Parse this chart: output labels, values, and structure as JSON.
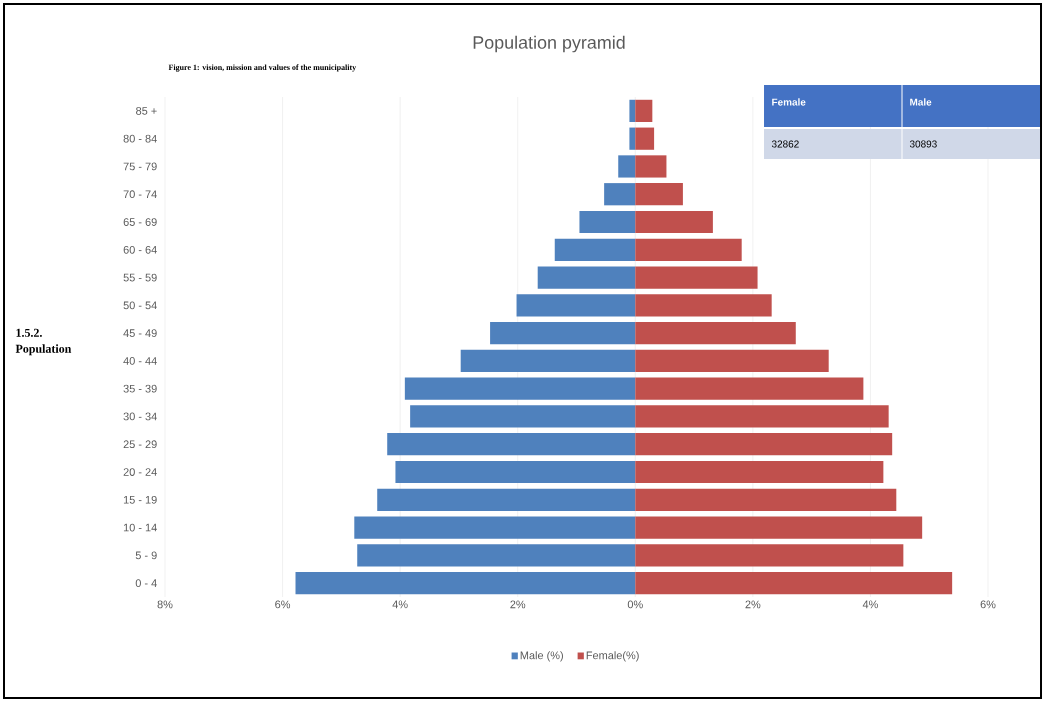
{
  "chart_data": {
    "type": "bar",
    "orientation": "horizontal",
    "title": "Population pyramid",
    "categories": [
      "85 +",
      "80 - 84",
      "75 - 79",
      "70 - 74",
      "65 - 69",
      "60 - 64",
      "55 - 59",
      "50 - 54",
      "45 - 49",
      "40 - 44",
      "35 - 39",
      "30 - 34",
      "25 - 29",
      "20 - 24",
      "15 - 19",
      "10 - 14",
      "5 - 9",
      "0 - 4"
    ],
    "series": [
      {
        "name": "Male (%)",
        "color": "#4f81bd",
        "values": [
          -0.1,
          -0.1,
          -0.29,
          -0.53,
          -0.95,
          -1.37,
          -1.66,
          -2.02,
          -2.47,
          -2.97,
          -3.92,
          -3.83,
          -4.22,
          -4.08,
          -4.39,
          -4.78,
          -4.73,
          -5.78
        ]
      },
      {
        "name": "Female(%)",
        "color": "#c0504d",
        "values": [
          0.29,
          0.32,
          0.53,
          0.81,
          1.32,
          1.81,
          2.08,
          2.32,
          2.73,
          3.29,
          3.88,
          4.31,
          4.37,
          4.22,
          4.44,
          4.88,
          4.56,
          5.39
        ]
      }
    ],
    "xlim": [
      -8,
      6
    ],
    "xticks": [
      {
        "value": -8,
        "label": "8%"
      },
      {
        "value": -6,
        "label": "6%"
      },
      {
        "value": -4,
        "label": "4%"
      },
      {
        "value": -2,
        "label": "2%"
      },
      {
        "value": 0,
        "label": "0%"
      },
      {
        "value": 2,
        "label": "2%"
      },
      {
        "value": 4,
        "label": "4%"
      },
      {
        "value": 6,
        "label": "6%"
      }
    ],
    "grid": "x",
    "legend": "bottom",
    "stacked": true,
    "annotations": [
      "Figure 1: vision, mission and values of the municipality",
      "1.5.2. Population",
      "Female",
      "Male",
      "32862",
      "30893"
    ]
  }
}
